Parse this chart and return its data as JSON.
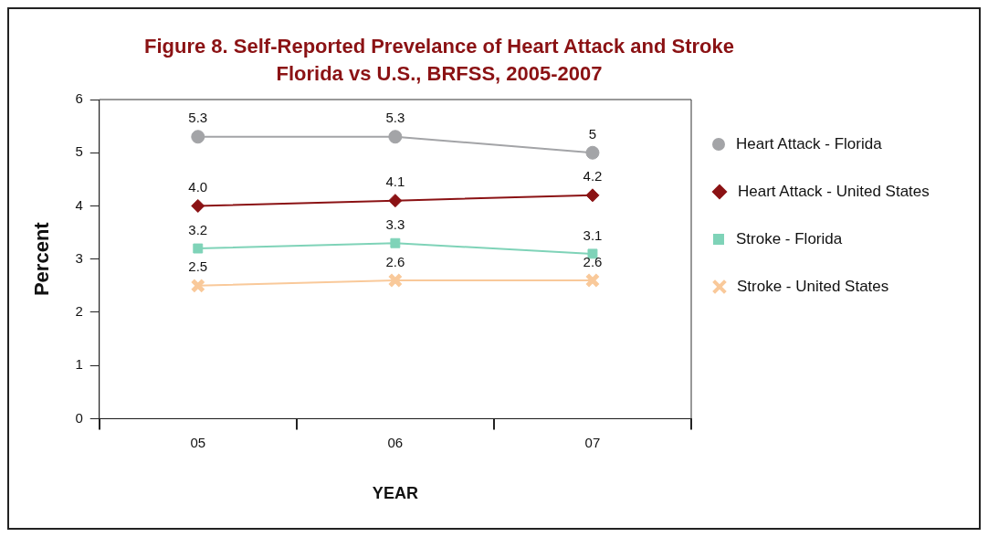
{
  "chart_data": {
    "type": "line",
    "title": "Figure 8. Self-Reported Prevelance of Heart Attack and Stroke\nFlorida vs U.S., BRFSS, 2005-2007",
    "xlabel": "YEAR",
    "ylabel": "Percent",
    "categories": [
      "05",
      "06",
      "07"
    ],
    "series": [
      {
        "name": "Heart Attack - Florida",
        "color": "#a3a4a7",
        "marker": "circle",
        "values": [
          5.3,
          5.3,
          5
        ],
        "value_labels": [
          "5.3",
          "5.3",
          "5"
        ]
      },
      {
        "name": "Heart Attack - United States",
        "color": "#8b1214",
        "marker": "diamond",
        "values": [
          4.0,
          4.1,
          4.2
        ],
        "value_labels": [
          "4.0",
          "4.1",
          "4.2"
        ]
      },
      {
        "name": "Stroke - Florida",
        "color": "#7fd3b8",
        "marker": "square",
        "values": [
          3.2,
          3.3,
          3.1
        ],
        "value_labels": [
          "3.2",
          "3.3",
          "3.1"
        ]
      },
      {
        "name": "Stroke - United States",
        "color": "#f9c99a",
        "marker": "cross",
        "values": [
          2.5,
          2.6,
          2.6
        ],
        "value_labels": [
          "2.5",
          "2.6",
          "2.6"
        ]
      }
    ],
    "ylim": [
      0,
      6
    ],
    "yticks": [
      0,
      1,
      2,
      3,
      4,
      5,
      6
    ],
    "grid": false,
    "legend": "right",
    "line_style": "solid"
  }
}
